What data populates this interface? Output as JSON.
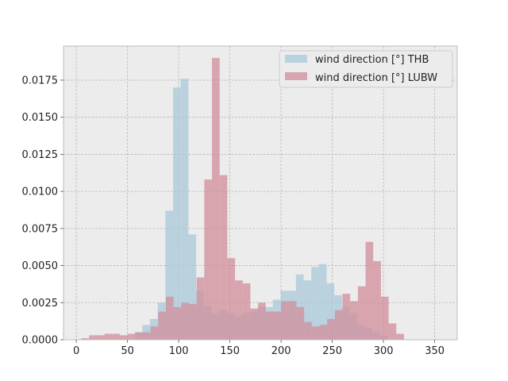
{
  "chart_data": {
    "type": "bar",
    "title": "",
    "xlabel": "",
    "ylabel": "",
    "xlim": [
      -12.5,
      372
    ],
    "ylim": [
      0,
      0.0198
    ],
    "grid": true,
    "legend_position": "top-right",
    "xticks": [
      "0",
      "50",
      "100",
      "150",
      "200",
      "250",
      "300",
      "350"
    ],
    "yticks": [
      "0.0000",
      "0.0025",
      "0.0050",
      "0.0075",
      "0.0100",
      "0.0125",
      "0.0150",
      "0.0175"
    ],
    "series": [
      {
        "name": "wind direction [°] THB",
        "color": "#a9c8da",
        "bin_start": 57,
        "bin_width": 7.5,
        "values": [
          0.0005,
          0.001,
          0.0014,
          0.0025,
          0.0087,
          0.017,
          0.0176,
          0.0071,
          0.0033,
          0.0023,
          0.0018,
          0.002,
          0.0018,
          0.0016,
          0.0018,
          0.0019,
          0.0022,
          0.0022,
          0.0027,
          0.0033,
          0.0033,
          0.0044,
          0.004,
          0.0049,
          0.0051,
          0.0038,
          0.003,
          0.0022,
          0.0018,
          0.001,
          0.0008,
          0.0005,
          0.0003
        ]
      },
      {
        "name": "wind direction [°] LUBW",
        "color": "#d18e9b",
        "bin_start": 5,
        "bin_width": 7.5,
        "values": [
          0.0001,
          0.0003,
          0.0003,
          0.0004,
          0.0004,
          0.0003,
          0.0004,
          0.0005,
          0.0005,
          0.0009,
          0.0019,
          0.0029,
          0.0022,
          0.0025,
          0.0024,
          0.0042,
          0.0108,
          0.019,
          0.0111,
          0.0055,
          0.004,
          0.0038,
          0.0021,
          0.0025,
          0.0019,
          0.0019,
          0.0026,
          0.0026,
          0.0022,
          0.0012,
          0.0009,
          0.001,
          0.0014,
          0.002,
          0.0031,
          0.0026,
          0.0036,
          0.0066,
          0.0053,
          0.0029,
          0.0011,
          0.0004
        ]
      }
    ]
  }
}
